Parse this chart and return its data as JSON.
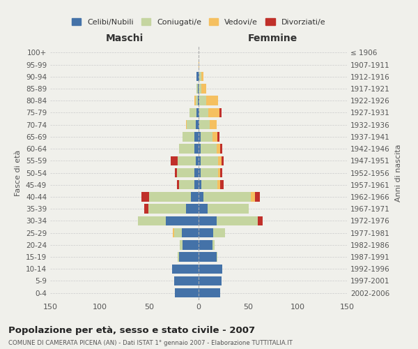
{
  "age_groups": [
    "0-4",
    "5-9",
    "10-14",
    "15-19",
    "20-24",
    "25-29",
    "30-34",
    "35-39",
    "40-44",
    "45-49",
    "50-54",
    "55-59",
    "60-64",
    "65-69",
    "70-74",
    "75-79",
    "80-84",
    "85-89",
    "90-94",
    "95-99",
    "100+"
  ],
  "birth_years": [
    "2002-2006",
    "1997-2001",
    "1992-1996",
    "1987-1991",
    "1982-1986",
    "1977-1981",
    "1972-1976",
    "1967-1971",
    "1962-1966",
    "1957-1961",
    "1952-1956",
    "1947-1951",
    "1942-1946",
    "1937-1941",
    "1932-1936",
    "1927-1931",
    "1922-1926",
    "1917-1921",
    "1912-1916",
    "1907-1911",
    "≤ 1906"
  ],
  "maschi_celibi": [
    24,
    25,
    27,
    20,
    16,
    17,
    33,
    13,
    8,
    4,
    4,
    3,
    4,
    4,
    3,
    2,
    1,
    1,
    2,
    0,
    0
  ],
  "maschi_coniugati": [
    0,
    0,
    0,
    1,
    3,
    8,
    28,
    38,
    42,
    16,
    18,
    18,
    16,
    12,
    9,
    7,
    2,
    1,
    0,
    0,
    0
  ],
  "maschi_vedovi": [
    0,
    0,
    0,
    0,
    0,
    1,
    0,
    0,
    0,
    0,
    0,
    0,
    0,
    0,
    1,
    0,
    1,
    0,
    0,
    0,
    0
  ],
  "maschi_divorziati": [
    0,
    0,
    0,
    0,
    0,
    0,
    0,
    4,
    8,
    2,
    2,
    7,
    0,
    0,
    0,
    0,
    0,
    0,
    0,
    0,
    0
  ],
  "femmine_nubili": [
    22,
    23,
    24,
    18,
    14,
    15,
    18,
    9,
    5,
    3,
    2,
    2,
    2,
    2,
    1,
    1,
    1,
    0,
    1,
    0,
    0
  ],
  "femmine_coniugate": [
    0,
    0,
    0,
    1,
    2,
    12,
    42,
    42,
    48,
    16,
    18,
    18,
    16,
    12,
    10,
    9,
    7,
    3,
    2,
    0,
    0
  ],
  "femmine_vedove": [
    0,
    0,
    0,
    0,
    0,
    0,
    0,
    0,
    4,
    3,
    2,
    3,
    4,
    5,
    7,
    11,
    12,
    5,
    2,
    1,
    0
  ],
  "femmine_divorziate": [
    0,
    0,
    0,
    0,
    0,
    0,
    5,
    0,
    5,
    3,
    2,
    2,
    2,
    2,
    0,
    2,
    0,
    0,
    0,
    0,
    0
  ],
  "colors": {
    "celibi": "#4472a8",
    "coniugati": "#c5d5a0",
    "vedovi": "#f5c060",
    "divorziati": "#c0302a"
  },
  "xlim": 150,
  "title": "Popolazione per età, sesso e stato civile - 2007",
  "subtitle": "COMUNE DI CAMERATA PICENA (AN) - Dati ISTAT 1° gennaio 2007 - Elaborazione TUTTITALIA.IT",
  "ylabel_left": "Fasce di età",
  "ylabel_right": "Anni di nascita",
  "xlabel_left": "Maschi",
  "xlabel_right": "Femmine",
  "background_color": "#f0f0eb",
  "grid_color": "#cccccc"
}
